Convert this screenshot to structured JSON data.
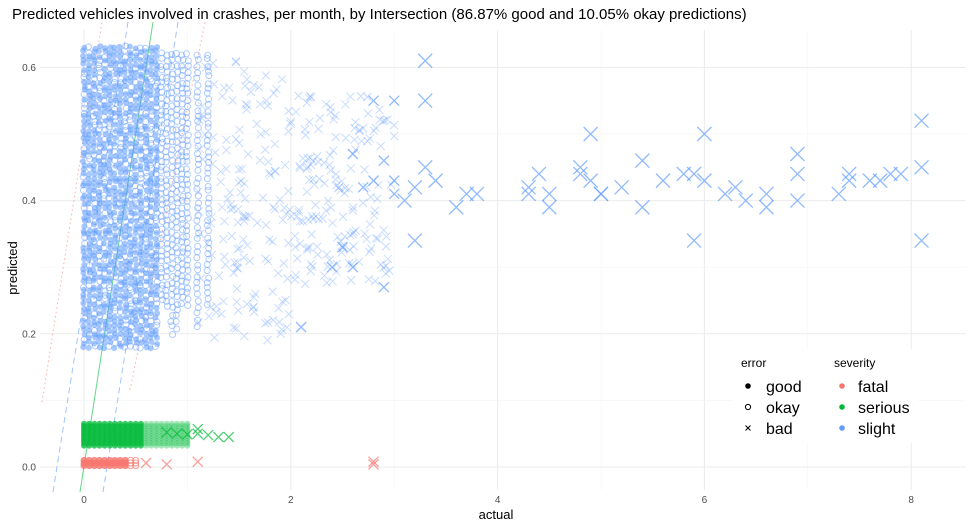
{
  "chart_data": {
    "type": "scatter",
    "title": "Predicted vehicles involved in crashes, per month, by Intersection (86.87% good and 10.05% okay predictions)",
    "xlabel": "actual",
    "ylabel": "predicted",
    "xlim": [
      -0.5,
      8.4
    ],
    "ylim": [
      -0.035,
      0.655
    ],
    "x_ticks": [
      0,
      2,
      4,
      6,
      8
    ],
    "y_ticks": [
      0.0,
      0.2,
      0.4,
      0.6
    ],
    "x_tick_labels": [
      "0",
      "2",
      "4",
      "6",
      "8"
    ],
    "y_tick_labels": [
      "0.0",
      "0.2",
      "0.4",
      "0.6"
    ],
    "grid": true,
    "legend_position": "bottom-right",
    "reference_lines": [
      {
        "slope": 1,
        "intercept": 0,
        "color": "#F8766D",
        "style": "dotted"
      },
      {
        "slope": 1,
        "intercept": 0,
        "color": "#00BA38",
        "style": "solid"
      },
      {
        "slope": 1,
        "intercept": 0,
        "color": "#619CFF",
        "style": "dashed"
      }
    ],
    "legends": {
      "error": {
        "title": "error",
        "entries": [
          {
            "label": "good",
            "shape": "dot"
          },
          {
            "label": "okay",
            "shape": "circle"
          },
          {
            "label": "bad",
            "shape": "cross"
          }
        ]
      },
      "severity": {
        "title": "severity",
        "entries": [
          {
            "label": "fatal",
            "color": "#F8766D"
          },
          {
            "label": "serious",
            "color": "#00BA38"
          },
          {
            "label": "slight",
            "color": "#619CFF"
          }
        ]
      }
    },
    "series": [
      {
        "severity": "slight",
        "color": "#619CFF",
        "error": "bad",
        "points": [
          [
            3.0,
            0.43
          ],
          [
            3.0,
            0.41
          ],
          [
            3.1,
            0.4
          ],
          [
            3.2,
            0.42
          ],
          [
            3.2,
            0.34
          ],
          [
            3.3,
            0.45
          ],
          [
            3.3,
            0.61
          ],
          [
            3.4,
            0.43
          ],
          [
            3.6,
            0.39
          ],
          [
            3.7,
            0.41
          ],
          [
            3.8,
            0.41
          ],
          [
            4.3,
            0.41
          ],
          [
            4.3,
            0.42
          ],
          [
            4.4,
            0.44
          ],
          [
            4.5,
            0.41
          ],
          [
            4.5,
            0.39
          ],
          [
            4.8,
            0.45
          ],
          [
            4.8,
            0.44
          ],
          [
            4.9,
            0.43
          ],
          [
            4.9,
            0.5
          ],
          [
            5.0,
            0.41
          ],
          [
            5.0,
            0.41
          ],
          [
            5.2,
            0.42
          ],
          [
            5.4,
            0.39
          ],
          [
            5.4,
            0.46
          ],
          [
            5.6,
            0.43
          ],
          [
            5.8,
            0.44
          ],
          [
            5.9,
            0.44
          ],
          [
            5.9,
            0.34
          ],
          [
            6.0,
            0.43
          ],
          [
            6.0,
            0.5
          ],
          [
            6.2,
            0.41
          ],
          [
            6.3,
            0.42
          ],
          [
            6.4,
            0.4
          ],
          [
            6.6,
            0.39
          ],
          [
            6.6,
            0.41
          ],
          [
            6.9,
            0.47
          ],
          [
            6.9,
            0.4
          ],
          [
            6.9,
            0.44
          ],
          [
            7.3,
            0.41
          ],
          [
            7.4,
            0.44
          ],
          [
            7.4,
            0.43
          ],
          [
            7.6,
            0.43
          ],
          [
            7.7,
            0.43
          ],
          [
            7.8,
            0.44
          ],
          [
            7.9,
            0.44
          ],
          [
            8.1,
            0.45
          ],
          [
            8.1,
            0.34
          ],
          [
            8.1,
            0.52
          ],
          [
            2.8,
            0.55
          ],
          [
            2.9,
            0.46
          ],
          [
            3.0,
            0.55
          ],
          [
            2.7,
            0.42
          ],
          [
            2.6,
            0.3
          ],
          [
            2.4,
            0.3
          ],
          [
            2.1,
            0.21
          ],
          [
            2.9,
            0.27
          ],
          [
            2.5,
            0.33
          ],
          [
            3.3,
            0.55
          ],
          [
            2.8,
            0.43
          ],
          [
            2.6,
            0.47
          ]
        ]
      },
      {
        "severity": "fatal",
        "color": "#F8766D",
        "error": "bad",
        "points": [
          [
            2.8,
            0.008
          ],
          [
            2.8,
            0.004
          ],
          [
            1.1,
            0.008
          ],
          [
            0.8,
            0.004
          ],
          [
            0.6,
            0.006
          ]
        ]
      },
      {
        "severity": "serious",
        "color": "#00BA38",
        "error": "bad",
        "points": [
          [
            0.8,
            0.052
          ],
          [
            0.9,
            0.05
          ],
          [
            1.0,
            0.049
          ],
          [
            1.1,
            0.05
          ],
          [
            1.2,
            0.048
          ],
          [
            1.3,
            0.045
          ],
          [
            1.4,
            0.045
          ],
          [
            1.1,
            0.057
          ]
        ]
      }
    ]
  }
}
